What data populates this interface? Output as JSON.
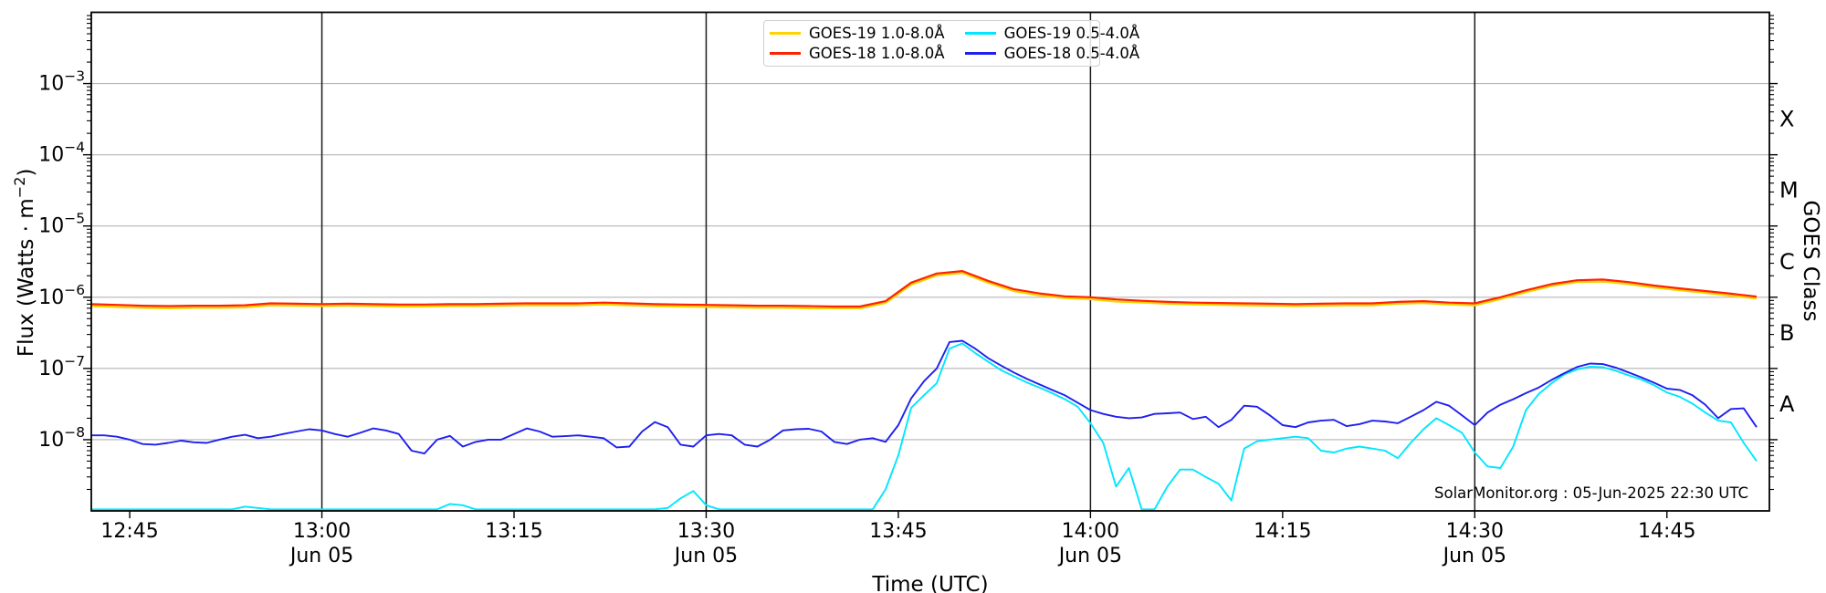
{
  "figure": {
    "background": "#ffffff",
    "annotation": "SolarMonitor.org : 05-Jun-2025 22:30 UTC",
    "x_axis_title": "Time (UTC)",
    "y_axis_title_pre": "Flux (Watts · m",
    "y_axis_title_sup": "−2",
    "y_axis_title_post": ")",
    "right_axis_title": "GOES Class"
  },
  "legend": {
    "entries": [
      {
        "label": "GOES-19 1.0-8.0Å",
        "color": "#ffd300"
      },
      {
        "label": "GOES-18 1.0-8.0Å",
        "color": "#ff2200"
      },
      {
        "label": "GOES-19 0.5-4.0Å",
        "color": "#00e6ff"
      },
      {
        "label": "GOES-18 0.5-4.0Å",
        "color": "#1f1ff0"
      }
    ]
  },
  "chart_data": {
    "type": "line",
    "title": "",
    "xlabel": "Time (UTC)",
    "ylabel": "Flux (Watts · m^-2)",
    "right_label": "GOES Class",
    "grid": "horizontal-decades",
    "legend_position": "top-center",
    "x_axis": {
      "time_start": "12:42",
      "time_end": "14:53",
      "t_max_minutes": 131,
      "date_label": "Jun 05",
      "ticks": [
        {
          "t": 3,
          "label": "12:45",
          "vline": false
        },
        {
          "t": 18,
          "label": "13:00",
          "day": "Jun 05",
          "vline": true
        },
        {
          "t": 33,
          "label": "13:15",
          "vline": false
        },
        {
          "t": 48,
          "label": "13:30",
          "day": "Jun 05",
          "vline": true
        },
        {
          "t": 63,
          "label": "13:45",
          "vline": false
        },
        {
          "t": 78,
          "label": "14:00",
          "day": "Jun 05",
          "vline": true
        },
        {
          "t": 93,
          "label": "14:15",
          "vline": false
        },
        {
          "t": 108,
          "label": "14:30",
          "day": "Jun 05",
          "vline": true
        },
        {
          "t": 123,
          "label": "14:45",
          "vline": false
        }
      ]
    },
    "y_axis": {
      "scale": "log",
      "min_exp": -9,
      "max_exp": -2,
      "labeled_exps": [
        -3,
        -4,
        -5,
        -6,
        -7,
        -8
      ],
      "unit": "Watts/m^2"
    },
    "goes_classes": [
      {
        "label": "X",
        "center_exp": -3.5
      },
      {
        "label": "M",
        "center_exp": -4.5
      },
      {
        "label": "C",
        "center_exp": -5.5
      },
      {
        "label": "B",
        "center_exp": -6.5
      },
      {
        "label": "A",
        "center_exp": -7.5
      }
    ],
    "series": [
      {
        "name": "GOES-19 1.0-8.0Å",
        "color": "#ffd300",
        "width": 2.2,
        "t_start": 0,
        "dt_min": 2,
        "scale": 1e-07,
        "values": [
          7.5,
          7.3,
          7.1,
          7.0,
          7.1,
          7.1,
          7.2,
          7.7,
          7.6,
          7.5,
          7.6,
          7.5,
          7.4,
          7.4,
          7.5,
          7.5,
          7.6,
          7.7,
          7.7,
          7.7,
          7.9,
          7.7,
          7.5,
          7.4,
          7.3,
          7.2,
          7.1,
          7.1,
          7.0,
          7.0,
          7.0,
          8.3,
          15.0,
          20.2,
          21.9,
          16.0,
          12.2,
          10.6,
          9.7,
          9.4,
          8.7,
          8.4,
          8.1,
          7.9,
          7.8,
          7.7,
          7.6,
          7.5,
          7.6,
          7.7,
          7.7,
          8.1,
          8.3,
          7.9,
          7.7,
          9.4,
          11.8,
          14.4,
          16.3,
          16.6,
          15.3,
          13.7,
          12.5,
          11.5,
          10.5,
          9.6
        ]
      },
      {
        "name": "GOES-18 1.0-8.0Å",
        "color": "#ff2200",
        "width": 2.2,
        "t_start": 0,
        "dt_min": 2,
        "scale": 1e-07,
        "values": [
          8.0,
          7.8,
          7.6,
          7.5,
          7.6,
          7.6,
          7.7,
          8.2,
          8.1,
          8.0,
          8.1,
          8.0,
          7.9,
          7.9,
          8.0,
          8.0,
          8.1,
          8.2,
          8.2,
          8.2,
          8.4,
          8.2,
          8.0,
          7.9,
          7.8,
          7.7,
          7.6,
          7.6,
          7.5,
          7.4,
          7.4,
          8.8,
          16.0,
          21.5,
          23.3,
          17.0,
          13.0,
          11.3,
          10.3,
          10.0,
          9.3,
          8.9,
          8.6,
          8.4,
          8.3,
          8.2,
          8.1,
          8.0,
          8.1,
          8.2,
          8.2,
          8.6,
          8.8,
          8.4,
          8.2,
          10.0,
          12.5,
          15.3,
          17.3,
          17.7,
          16.3,
          14.6,
          13.3,
          12.2,
          11.2,
          10.2
        ]
      },
      {
        "name": "GOES-19 0.5-4.0Å",
        "color": "#00e6ff",
        "width": 1.9,
        "t_start": 0,
        "dt_min": 1,
        "scale": 1e-08,
        "values": [
          0.105,
          0.105,
          0.105,
          0.105,
          0.105,
          0.105,
          0.105,
          0.105,
          0.105,
          0.105,
          0.105,
          0.105,
          0.115,
          0.11,
          0.105,
          0.105,
          0.105,
          0.105,
          0.105,
          0.105,
          0.105,
          0.105,
          0.105,
          0.105,
          0.105,
          0.105,
          0.105,
          0.105,
          0.125,
          0.12,
          0.105,
          0.105,
          0.105,
          0.105,
          0.105,
          0.105,
          0.105,
          0.105,
          0.105,
          0.105,
          0.105,
          0.105,
          0.105,
          0.105,
          0.105,
          0.11,
          0.15,
          0.19,
          0.12,
          0.105,
          0.105,
          0.105,
          0.105,
          0.105,
          0.105,
          0.105,
          0.105,
          0.105,
          0.105,
          0.105,
          0.105,
          0.105,
          0.2,
          0.6,
          2.8,
          4.2,
          6.2,
          19.0,
          22.5,
          16.5,
          12.5,
          9.5,
          7.8,
          6.4,
          5.4,
          4.5,
          3.7,
          2.9,
          1.7,
          0.9,
          0.22,
          0.4,
          0.105,
          0.105,
          0.22,
          0.38,
          0.38,
          0.3,
          0.24,
          0.14,
          0.75,
          0.95,
          1.0,
          1.05,
          1.1,
          1.05,
          0.7,
          0.66,
          0.75,
          0.8,
          0.75,
          0.7,
          0.55,
          0.9,
          1.4,
          2.0,
          1.6,
          1.25,
          0.66,
          0.42,
          0.4,
          0.8,
          2.6,
          4.4,
          6.2,
          8.3,
          9.7,
          10.6,
          10.4,
          9.3,
          8.0,
          7.0,
          5.8,
          4.6,
          4.0,
          3.2,
          2.4,
          1.85,
          1.75,
          0.9,
          0.5
        ]
      },
      {
        "name": "GOES-18 0.5-4.0Å",
        "color": "#1f1ff0",
        "width": 1.9,
        "t_start": 0,
        "dt_min": 1,
        "scale": 1e-08,
        "values": [
          1.15,
          1.15,
          1.1,
          1.0,
          0.87,
          0.85,
          0.9,
          0.97,
          0.92,
          0.9,
          1.0,
          1.1,
          1.17,
          1.05,
          1.1,
          1.2,
          1.3,
          1.4,
          1.35,
          1.2,
          1.1,
          1.25,
          1.44,
          1.35,
          1.2,
          0.7,
          0.64,
          1.0,
          1.13,
          0.8,
          0.93,
          1.0,
          1.0,
          1.2,
          1.44,
          1.3,
          1.1,
          1.12,
          1.15,
          1.1,
          1.05,
          0.78,
          0.8,
          1.3,
          1.77,
          1.5,
          0.85,
          0.8,
          1.15,
          1.2,
          1.15,
          0.85,
          0.8,
          1.0,
          1.35,
          1.4,
          1.42,
          1.3,
          0.93,
          0.87,
          1.0,
          1.05,
          0.93,
          1.6,
          3.8,
          6.6,
          10.0,
          23.5,
          24.5,
          19.0,
          14.0,
          11.0,
          8.8,
          7.2,
          6.0,
          5.0,
          4.2,
          3.3,
          2.6,
          2.3,
          2.1,
          2.0,
          2.05,
          2.3,
          2.35,
          2.4,
          1.95,
          2.1,
          1.5,
          1.9,
          3.0,
          2.9,
          2.2,
          1.6,
          1.5,
          1.75,
          1.85,
          1.9,
          1.55,
          1.65,
          1.85,
          1.8,
          1.7,
          2.1,
          2.6,
          3.4,
          3.0,
          2.2,
          1.6,
          2.4,
          3.1,
          3.7,
          4.5,
          5.4,
          6.9,
          8.6,
          10.5,
          11.7,
          11.5,
          10.3,
          8.8,
          7.5,
          6.3,
          5.2,
          5.0,
          4.2,
          3.1,
          2.0,
          2.7,
          2.75,
          1.5
        ]
      }
    ],
    "style": {
      "grid_color": "#b5b5b5",
      "vline_color": "#1a1a1a",
      "spine_color": "#000000",
      "tick_label_size": 22,
      "class_label_size": 24
    }
  }
}
